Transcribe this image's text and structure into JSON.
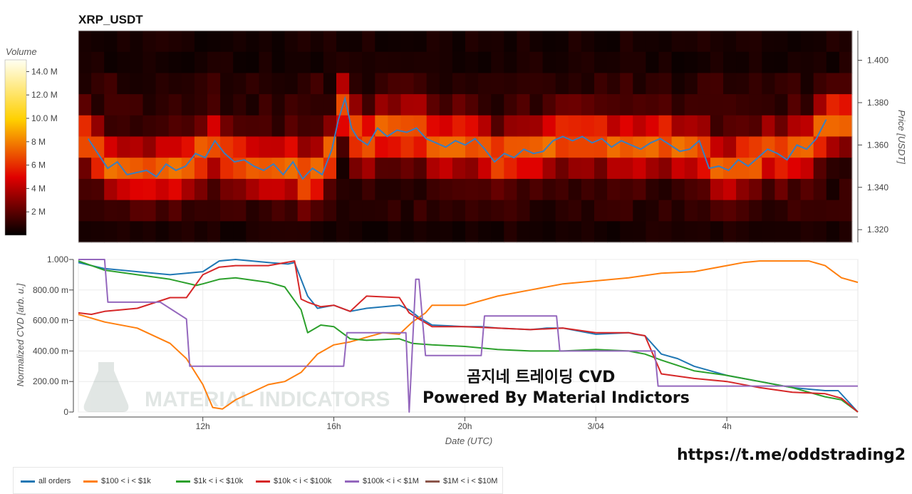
{
  "chart_data": [
    {
      "type": "heatmap",
      "title": "XRP_USDT",
      "ylabel": "Price [USDT]",
      "ylim": [
        1.314,
        1.414
      ],
      "y_ticks": [
        "1.400",
        "1.380",
        "1.360",
        "1.340",
        "1.320"
      ],
      "colorbar": {
        "label": "Volume",
        "ticks": [
          "14.0 M",
          "12.0 M",
          "10.0 M",
          "8 M",
          "6 M",
          "4 M",
          "2 M"
        ],
        "range": [
          0,
          15000000
        ]
      },
      "price_series": {
        "name": "",
        "color": "#3a7fc0",
        "x_hours": [
          8.5,
          8.8,
          9.1,
          9.4,
          9.7,
          10.0,
          10.3,
          10.6,
          10.9,
          11.2,
          11.5,
          11.8,
          12.1,
          12.4,
          12.7,
          13.0,
          13.3,
          13.6,
          13.9,
          14.2,
          14.5,
          14.8,
          15.1,
          15.4,
          15.7,
          16.0,
          16.2,
          16.4,
          16.6,
          16.8,
          17.1,
          17.4,
          17.7,
          18.0,
          18.3,
          18.6,
          18.9,
          19.2,
          19.5,
          19.8,
          20.1,
          20.4,
          20.7,
          21.0,
          21.3,
          21.6,
          21.9,
          22.2,
          22.5,
          22.8,
          23.1,
          23.4,
          23.7,
          24.0,
          24.3,
          24.6,
          24.9,
          25.2,
          25.5,
          25.8,
          26.1,
          26.4,
          26.7,
          27.0,
          27.3,
          27.6,
          27.9,
          28.2,
          28.5,
          28.8,
          29.1,
          29.4,
          29.7,
          30.0,
          30.3,
          30.6,
          30.9,
          31.2
        ],
        "values": [
          1.363,
          1.356,
          1.349,
          1.352,
          1.346,
          1.347,
          1.348,
          1.345,
          1.351,
          1.348,
          1.35,
          1.356,
          1.354,
          1.362,
          1.356,
          1.352,
          1.353,
          1.35,
          1.348,
          1.351,
          1.346,
          1.352,
          1.344,
          1.349,
          1.346,
          1.358,
          1.372,
          1.382,
          1.368,
          1.363,
          1.36,
          1.368,
          1.364,
          1.367,
          1.366,
          1.368,
          1.363,
          1.361,
          1.359,
          1.362,
          1.36,
          1.363,
          1.358,
          1.352,
          1.356,
          1.354,
          1.358,
          1.356,
          1.357,
          1.362,
          1.364,
          1.362,
          1.364,
          1.361,
          1.363,
          1.359,
          1.362,
          1.36,
          1.358,
          1.361,
          1.363,
          1.36,
          1.357,
          1.358,
          1.362,
          1.349,
          1.35,
          1.348,
          1.353,
          1.35,
          1.354,
          1.358,
          1.356,
          1.353,
          1.36,
          1.358,
          1.363,
          1.372
        ]
      }
    },
    {
      "type": "line",
      "xlabel": "Date (UTC)",
      "ylabel": "Normalized CVD [arb. u.]",
      "ylim": [
        0,
        1.0
      ],
      "xlim_hours": [
        8.2,
        32.0
      ],
      "y_ticks": [
        "1.000",
        "800.00 m",
        "600.00 m",
        "400.00 m",
        "200.00 m",
        "0"
      ],
      "y_tick_values": [
        1.0,
        0.8,
        0.6,
        0.4,
        0.2,
        0
      ],
      "x_ticks": [
        "12h",
        "16h",
        "20h",
        "3/04",
        "4h"
      ],
      "x_tick_hours": [
        12,
        16,
        20,
        24,
        28
      ],
      "series": [
        {
          "name": "all orders",
          "color": "#1f77b4",
          "x": [
            8.2,
            9,
            10,
            11,
            12,
            12.5,
            13,
            14,
            14.6,
            14.8,
            15.2,
            15.5,
            16,
            16.5,
            17,
            18,
            18.3,
            18.6,
            19,
            20,
            20.5,
            21,
            22,
            22.5,
            23,
            24,
            25,
            25.2,
            25.5,
            26,
            26.5,
            27,
            28,
            29,
            30,
            31,
            31.4,
            32
          ],
          "values": [
            0.98,
            0.94,
            0.92,
            0.9,
            0.92,
            0.99,
            1.0,
            0.98,
            0.97,
            0.98,
            0.76,
            0.68,
            0.7,
            0.66,
            0.68,
            0.7,
            0.67,
            0.62,
            0.57,
            0.56,
            0.56,
            0.55,
            0.54,
            0.55,
            0.55,
            0.51,
            0.52,
            0.51,
            0.5,
            0.38,
            0.35,
            0.3,
            0.24,
            0.2,
            0.16,
            0.14,
            0.14,
            0.0
          ]
        },
        {
          "name": "$100 < i < $1k",
          "color": "#ff7f0e",
          "x": [
            8.2,
            9,
            10,
            11,
            11.5,
            12,
            12.3,
            12.6,
            13,
            14,
            14.5,
            15,
            15.5,
            16,
            16.5,
            17,
            17.5,
            18,
            18.4,
            18.8,
            19,
            20,
            21,
            22,
            23,
            24,
            25,
            26,
            27,
            28,
            28.5,
            29,
            30,
            30.5,
            31,
            31.5,
            32
          ],
          "values": [
            0.64,
            0.59,
            0.55,
            0.45,
            0.35,
            0.18,
            0.03,
            0.02,
            0.08,
            0.18,
            0.2,
            0.26,
            0.38,
            0.44,
            0.46,
            0.49,
            0.52,
            0.51,
            0.59,
            0.65,
            0.7,
            0.7,
            0.76,
            0.8,
            0.84,
            0.86,
            0.88,
            0.91,
            0.92,
            0.96,
            0.98,
            0.99,
            0.99,
            0.99,
            0.96,
            0.88,
            0.85
          ]
        },
        {
          "name": "$1k < i < $10k",
          "color": "#2ca02c",
          "x": [
            8.2,
            9,
            10,
            11,
            11.8,
            12,
            12.5,
            13,
            14,
            14.5,
            15,
            15.2,
            15.6,
            16,
            16.5,
            17,
            18,
            18.4,
            19,
            20,
            21,
            22,
            23,
            24,
            25,
            25.5,
            26,
            27,
            28,
            29,
            30,
            31,
            31.5,
            32
          ],
          "values": [
            0.99,
            0.93,
            0.9,
            0.87,
            0.83,
            0.84,
            0.87,
            0.88,
            0.85,
            0.82,
            0.67,
            0.52,
            0.57,
            0.56,
            0.48,
            0.47,
            0.48,
            0.45,
            0.44,
            0.43,
            0.41,
            0.4,
            0.4,
            0.41,
            0.4,
            0.38,
            0.34,
            0.27,
            0.24,
            0.2,
            0.16,
            0.1,
            0.08,
            0.0
          ]
        },
        {
          "name": "$10k < i < $100k",
          "color": "#d62728",
          "x": [
            8.2,
            8.6,
            9,
            10,
            11,
            11.5,
            12,
            12.5,
            13,
            14,
            14.8,
            15,
            15.2,
            15.6,
            16,
            16.5,
            17,
            18,
            18.3,
            18.6,
            19,
            20,
            21,
            22,
            23,
            24,
            25,
            25.5,
            26,
            27,
            28,
            29,
            30,
            31,
            31.5,
            32
          ],
          "values": [
            0.65,
            0.64,
            0.66,
            0.68,
            0.75,
            0.75,
            0.9,
            0.95,
            0.96,
            0.96,
            0.99,
            0.74,
            0.72,
            0.69,
            0.7,
            0.66,
            0.76,
            0.75,
            0.65,
            0.61,
            0.56,
            0.56,
            0.55,
            0.54,
            0.55,
            0.52,
            0.52,
            0.5,
            0.25,
            0.22,
            0.2,
            0.16,
            0.13,
            0.12,
            0.09,
            0.0
          ]
        },
        {
          "name": "$100k < i < $1M",
          "color": "#9467bd",
          "x": [
            8.2,
            9.0,
            9.1,
            10.6,
            10.7,
            11.5,
            11.6,
            16.3,
            16.4,
            18.2,
            18.3,
            18.5,
            18.6,
            18.8,
            18.9,
            20.5,
            20.6,
            22.8,
            22.9,
            25.8,
            25.9,
            32.0
          ],
          "values": [
            1.0,
            1.0,
            0.72,
            0.72,
            0.72,
            0.61,
            0.3,
            0.3,
            0.52,
            0.52,
            0.0,
            0.87,
            0.87,
            0.37,
            0.37,
            0.37,
            0.63,
            0.63,
            0.4,
            0.4,
            0.17,
            0.17
          ]
        },
        {
          "name": "$1M < i < $10M",
          "color": "#8c564b",
          "x": [],
          "values": []
        }
      ]
    }
  ],
  "watermark": "MATERIAL INDICATORS",
  "overlay": {
    "title_ko": "곰지네 트레이딩 CVD",
    "powered": "Powered By Material Indictors",
    "url": "https://t.me/oddstrading2"
  }
}
